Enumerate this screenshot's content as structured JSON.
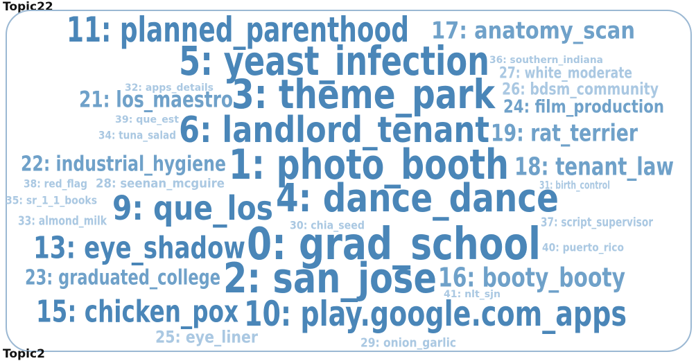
{
  "topic_label": "Topic22",
  "next_topic_label": "Topic2",
  "colors": {
    "strong": "#4a86b8",
    "mid": "#6fa1c9",
    "light": "#aac8e2",
    "frame": "#9bb8d3"
  },
  "words": [
    {
      "id": 0,
      "text": "0: grad_school"
    },
    {
      "id": 1,
      "text": "1: photo_booth"
    },
    {
      "id": 2,
      "text": "2: san_jose"
    },
    {
      "id": 3,
      "text": "3: theme_park"
    },
    {
      "id": 4,
      "text": "4: dance_dance"
    },
    {
      "id": 5,
      "text": "5: yeast_infection"
    },
    {
      "id": 6,
      "text": "6: landlord_tenant"
    },
    {
      "id": 9,
      "text": "9: que_los"
    },
    {
      "id": 10,
      "text": "10: play.google.com_apps"
    },
    {
      "id": 11,
      "text": "11: planned_parenthood"
    },
    {
      "id": 13,
      "text": "13: eye_shadow"
    },
    {
      "id": 15,
      "text": "15: chicken_pox"
    },
    {
      "id": 16,
      "text": "16: booty_booty"
    },
    {
      "id": 17,
      "text": "17: anatomy_scan"
    },
    {
      "id": 18,
      "text": "18: tenant_law"
    },
    {
      "id": 19,
      "text": "19: rat_terrier"
    },
    {
      "id": 21,
      "text": "21: los_maestro"
    },
    {
      "id": 22,
      "text": "22: industrial_hygiene"
    },
    {
      "id": 23,
      "text": "23: graduated_college"
    },
    {
      "id": 24,
      "text": "24: film_production"
    },
    {
      "id": 25,
      "text": "25: eye_liner"
    },
    {
      "id": 26,
      "text": "26: bdsm_community"
    },
    {
      "id": 27,
      "text": "27: white_moderate"
    },
    {
      "id": 28,
      "text": "28: seenan_mcguire"
    },
    {
      "id": 29,
      "text": "29: onion_garlic"
    },
    {
      "id": 30,
      "text": "30: chia_seed"
    },
    {
      "id": 31,
      "text": "31: birth_control"
    },
    {
      "id": 32,
      "text": "32: apps_details"
    },
    {
      "id": 33,
      "text": "33: almond_milk"
    },
    {
      "id": 34,
      "text": "34: tuna_salad"
    },
    {
      "id": 35,
      "text": "35: sr_1_1_books"
    },
    {
      "id": 36,
      "text": "36: southern_indiana"
    },
    {
      "id": 37,
      "text": "37: script_supervisor"
    },
    {
      "id": 38,
      "text": "38: red_flag"
    },
    {
      "id": 39,
      "text": "39: que_est"
    },
    {
      "id": 40,
      "text": "40: puerto_rico"
    },
    {
      "id": 41,
      "text": "41: nlt_sjn"
    }
  ]
}
